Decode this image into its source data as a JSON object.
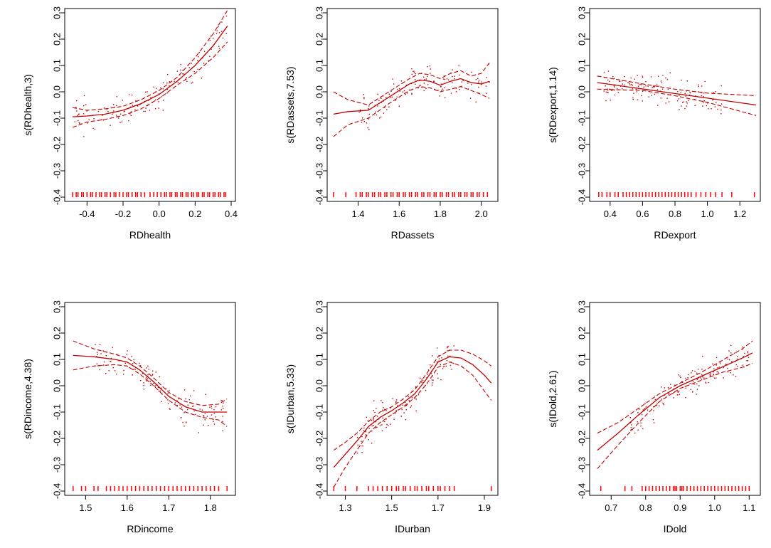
{
  "figure": {
    "colors": {
      "fit": "#c00000",
      "rug": "#ff0000",
      "axis": "#000000",
      "background": "#ffffff"
    }
  },
  "chart_data": [
    {
      "type": "line",
      "xlabel": "RDhealth",
      "ylabel": "s(RDhealth,3)",
      "xlim": [
        -0.5,
        0.4
      ],
      "ylim": [
        -0.4,
        0.3
      ],
      "xticks": [
        -0.4,
        -0.2,
        0.0,
        0.2,
        0.4
      ],
      "xtick_labels": [
        "-0.4",
        "-0.2",
        "0.0",
        "0.2",
        "0.4"
      ],
      "yticks": [
        -0.4,
        -0.3,
        -0.2,
        -0.1,
        0.0,
        0.1,
        0.2,
        0.3
      ],
      "ytick_labels": [
        "-0.4",
        "-0.3",
        "-0.2",
        "-0.1",
        "0.0",
        "0.1",
        "0.2",
        "0.3"
      ],
      "series": [
        {
          "name": "fit",
          "x": [
            -0.48,
            -0.4,
            -0.3,
            -0.2,
            -0.1,
            0.0,
            0.1,
            0.2,
            0.3,
            0.38
          ],
          "y": [
            -0.095,
            -0.092,
            -0.085,
            -0.07,
            -0.045,
            -0.01,
            0.04,
            0.1,
            0.175,
            0.25
          ]
        },
        {
          "name": "upper",
          "x": [
            -0.48,
            -0.4,
            -0.3,
            -0.2,
            -0.1,
            0.0,
            0.1,
            0.2,
            0.3,
            0.38
          ],
          "y": [
            -0.06,
            -0.07,
            -0.065,
            -0.055,
            -0.03,
            0.005,
            0.055,
            0.13,
            0.22,
            0.31
          ]
        },
        {
          "name": "lower",
          "x": [
            -0.48,
            -0.4,
            -0.3,
            -0.2,
            -0.1,
            0.0,
            0.1,
            0.2,
            0.3,
            0.38
          ],
          "y": [
            -0.135,
            -0.115,
            -0.105,
            -0.09,
            -0.065,
            -0.025,
            0.025,
            0.07,
            0.13,
            0.19
          ]
        }
      ],
      "points": {
        "xmin": -0.48,
        "xmax": 0.38,
        "n": 140,
        "spread": 0.04,
        "seed": 11
      },
      "rug": {
        "x": [
          -0.48,
          -0.46,
          -0.45,
          -0.43,
          -0.42,
          -0.4,
          -0.38,
          -0.37,
          -0.35,
          -0.33,
          -0.32,
          -0.3,
          -0.29,
          -0.27,
          -0.25,
          -0.24,
          -0.22,
          -0.2,
          -0.18,
          -0.17,
          -0.15,
          -0.13,
          -0.12,
          -0.1,
          -0.08,
          -0.05,
          -0.03,
          -0.01,
          0.01,
          0.03,
          0.04,
          0.06,
          0.07,
          0.09,
          0.1,
          0.12,
          0.13,
          0.15,
          0.16,
          0.18,
          0.19,
          0.21,
          0.22,
          0.24,
          0.25,
          0.27,
          0.28,
          0.3,
          0.31,
          0.33,
          0.34,
          0.36,
          0.37
        ]
      }
    },
    {
      "type": "line",
      "xlabel": "RDassets",
      "ylabel": "s(RDassets,7.53)",
      "xlim": [
        1.27,
        2.06
      ],
      "ylim": [
        -0.4,
        0.3
      ],
      "xticks": [
        1.4,
        1.6,
        1.8,
        2.0
      ],
      "xtick_labels": [
        "1.4",
        "1.6",
        "1.8",
        "2.0"
      ],
      "yticks": [
        -0.4,
        -0.3,
        -0.2,
        -0.1,
        0.0,
        0.1,
        0.2,
        0.3
      ],
      "ytick_labels": [
        "-0.4",
        "-0.3",
        "-0.2",
        "-0.1",
        "0.0",
        "0.1",
        "0.2",
        "0.3"
      ],
      "series": [
        {
          "name": "fit",
          "x": [
            1.28,
            1.35,
            1.45,
            1.55,
            1.65,
            1.7,
            1.75,
            1.8,
            1.85,
            1.9,
            1.95,
            2.0,
            2.04
          ],
          "y": [
            -0.085,
            -0.075,
            -0.07,
            -0.02,
            0.03,
            0.045,
            0.04,
            0.025,
            0.04,
            0.05,
            0.035,
            0.03,
            0.04
          ]
        },
        {
          "name": "upper",
          "x": [
            1.28,
            1.35,
            1.45,
            1.55,
            1.65,
            1.7,
            1.75,
            1.8,
            1.85,
            1.9,
            1.95,
            2.0,
            2.04
          ],
          "y": [
            0.0,
            -0.03,
            -0.05,
            0.0,
            0.05,
            0.07,
            0.065,
            0.05,
            0.07,
            0.08,
            0.06,
            0.07,
            0.11
          ]
        },
        {
          "name": "lower",
          "x": [
            1.28,
            1.35,
            1.45,
            1.55,
            1.65,
            1.7,
            1.75,
            1.8,
            1.85,
            1.9,
            1.95,
            2.0,
            2.04
          ],
          "y": [
            -0.17,
            -0.125,
            -0.1,
            -0.045,
            0.005,
            0.02,
            0.015,
            0.0,
            0.01,
            0.02,
            0.005,
            -0.01,
            -0.025
          ]
        },
        {
          "name": "fit-extra",
          "x": [],
          "y": []
        }
      ],
      "points": {
        "xmin": 1.4,
        "xmax": 2.04,
        "n": 140,
        "spread": 0.045,
        "seed": 23
      },
      "rug": {
        "x": [
          1.28,
          1.34,
          1.39,
          1.41,
          1.42,
          1.44,
          1.45,
          1.47,
          1.48,
          1.5,
          1.51,
          1.53,
          1.54,
          1.56,
          1.57,
          1.59,
          1.6,
          1.62,
          1.63,
          1.65,
          1.66,
          1.68,
          1.69,
          1.71,
          1.72,
          1.74,
          1.75,
          1.77,
          1.78,
          1.8,
          1.81,
          1.83,
          1.84,
          1.86,
          1.87,
          1.89,
          1.9,
          1.92,
          1.93,
          1.95,
          1.96,
          1.98,
          1.99,
          2.01,
          2.03
        ]
      }
    },
    {
      "type": "line",
      "xlabel": "RDexport",
      "ylabel": "s(RDexport,1.14)",
      "xlim": [
        0.3,
        1.3
      ],
      "ylim": [
        -0.4,
        0.3
      ],
      "xticks": [
        0.4,
        0.6,
        0.8,
        1.0,
        1.2
      ],
      "xtick_labels": [
        "0.4",
        "0.6",
        "0.8",
        "1.0",
        "1.2"
      ],
      "yticks": [
        -0.4,
        -0.3,
        -0.2,
        -0.1,
        0.0,
        0.1,
        0.2,
        0.3
      ],
      "ytick_labels": [
        "-0.4",
        "-0.3",
        "-0.2",
        "-0.1",
        "0.0",
        "0.1",
        "0.2",
        "0.3"
      ],
      "series": [
        {
          "name": "fit",
          "x": [
            0.32,
            1.3
          ],
          "y": [
            0.035,
            -0.05
          ]
        },
        {
          "name": "upper",
          "x": [
            0.32,
            0.6,
            0.8,
            1.0,
            1.3
          ],
          "y": [
            0.06,
            0.03,
            0.01,
            -0.005,
            -0.015
          ]
        },
        {
          "name": "lower",
          "x": [
            0.32,
            0.6,
            0.8,
            1.0,
            1.3
          ],
          "y": [
            0.01,
            0.005,
            -0.015,
            -0.04,
            -0.09
          ]
        }
      ],
      "points": {
        "xmin": 0.35,
        "xmax": 1.1,
        "n": 150,
        "spread": 0.04,
        "seed": 37
      },
      "rug": {
        "x": [
          0.33,
          0.35,
          0.38,
          0.4,
          0.43,
          0.45,
          0.48,
          0.5,
          0.52,
          0.54,
          0.56,
          0.58,
          0.6,
          0.62,
          0.64,
          0.66,
          0.68,
          0.7,
          0.72,
          0.74,
          0.76,
          0.78,
          0.8,
          0.82,
          0.84,
          0.86,
          0.88,
          0.9,
          0.93,
          0.96,
          0.99,
          1.02,
          1.05,
          1.09,
          1.15,
          1.29
        ]
      }
    },
    {
      "type": "line",
      "xlabel": "RDincome",
      "ylabel": "s(RDincome,4.38)",
      "xlim": [
        1.46,
        1.85
      ],
      "ylim": [
        -0.4,
        0.3
      ],
      "xticks": [
        1.5,
        1.6,
        1.7,
        1.8
      ],
      "xtick_labels": [
        "1.5",
        "1.6",
        "1.7",
        "1.8"
      ],
      "yticks": [
        -0.4,
        -0.3,
        -0.2,
        -0.1,
        0.0,
        0.1,
        0.2,
        0.3
      ],
      "ytick_labels": [
        "-0.4",
        "-0.3",
        "-0.2",
        "-0.1",
        "0.0",
        "0.1",
        "0.2",
        "0.3"
      ],
      "series": [
        {
          "name": "fit",
          "x": [
            1.47,
            1.52,
            1.57,
            1.6,
            1.63,
            1.66,
            1.7,
            1.74,
            1.78,
            1.82,
            1.84
          ],
          "y": [
            0.115,
            0.11,
            0.1,
            0.09,
            0.06,
            0.02,
            -0.04,
            -0.08,
            -0.1,
            -0.1,
            -0.1
          ]
        },
        {
          "name": "upper",
          "x": [
            1.47,
            1.52,
            1.57,
            1.6,
            1.63,
            1.66,
            1.7,
            1.74,
            1.78,
            1.82,
            1.84
          ],
          "y": [
            0.17,
            0.14,
            0.12,
            0.105,
            0.075,
            0.035,
            -0.025,
            -0.06,
            -0.075,
            -0.07,
            -0.05
          ]
        },
        {
          "name": "lower",
          "x": [
            1.47,
            1.52,
            1.57,
            1.6,
            1.63,
            1.66,
            1.7,
            1.74,
            1.78,
            1.82,
            1.84
          ],
          "y": [
            0.06,
            0.075,
            0.08,
            0.075,
            0.045,
            0.005,
            -0.055,
            -0.1,
            -0.12,
            -0.13,
            -0.155
          ]
        }
      ],
      "points": {
        "xmin": 1.52,
        "xmax": 1.83,
        "n": 140,
        "spread": 0.045,
        "seed": 51
      },
      "rug": {
        "x": [
          1.47,
          1.49,
          1.5,
          1.52,
          1.53,
          1.55,
          1.56,
          1.57,
          1.58,
          1.59,
          1.6,
          1.61,
          1.62,
          1.63,
          1.64,
          1.65,
          1.66,
          1.67,
          1.68,
          1.69,
          1.7,
          1.71,
          1.72,
          1.73,
          1.74,
          1.75,
          1.76,
          1.77,
          1.78,
          1.79,
          1.8,
          1.81,
          1.82,
          1.84
        ]
      }
    },
    {
      "type": "line",
      "xlabel": "IDurban",
      "ylabel": "s(IDurban,5.33)",
      "xlim": [
        1.24,
        1.94
      ],
      "ylim": [
        -0.4,
        0.3
      ],
      "xticks": [
        1.3,
        1.5,
        1.7,
        1.9
      ],
      "xtick_labels": [
        "1.3",
        "1.5",
        "1.7",
        "1.9"
      ],
      "yticks": [
        -0.4,
        -0.3,
        -0.2,
        -0.1,
        0.0,
        0.1,
        0.2,
        0.3
      ],
      "ytick_labels": [
        "-0.4",
        "-0.3",
        "-0.2",
        "-0.1",
        "0.0",
        "0.1",
        "0.2",
        "0.3"
      ],
      "series": [
        {
          "name": "fit",
          "x": [
            1.25,
            1.3,
            1.35,
            1.4,
            1.45,
            1.5,
            1.55,
            1.6,
            1.65,
            1.7,
            1.75,
            1.8,
            1.85,
            1.9,
            1.93
          ],
          "y": [
            -0.31,
            -0.26,
            -0.21,
            -0.155,
            -0.12,
            -0.095,
            -0.065,
            -0.03,
            0.025,
            0.09,
            0.11,
            0.105,
            0.08,
            0.04,
            0.01
          ]
        },
        {
          "name": "upper",
          "x": [
            1.25,
            1.3,
            1.35,
            1.4,
            1.45,
            1.5,
            1.55,
            1.6,
            1.65,
            1.7,
            1.75,
            1.8,
            1.85,
            1.9,
            1.93
          ],
          "y": [
            -0.245,
            -0.215,
            -0.18,
            -0.135,
            -0.1,
            -0.08,
            -0.05,
            -0.015,
            0.045,
            0.11,
            0.135,
            0.135,
            0.12,
            0.095,
            0.075
          ]
        },
        {
          "name": "lower",
          "x": [
            1.25,
            1.3,
            1.35,
            1.4,
            1.45,
            1.5,
            1.55,
            1.6,
            1.65,
            1.7,
            1.75,
            1.8,
            1.85,
            1.9,
            1.93
          ],
          "y": [
            -0.385,
            -0.31,
            -0.245,
            -0.18,
            -0.14,
            -0.11,
            -0.08,
            -0.045,
            0.005,
            0.07,
            0.09,
            0.075,
            0.04,
            -0.02,
            -0.055
          ]
        }
      ],
      "points": {
        "xmin": 1.35,
        "xmax": 1.77,
        "n": 140,
        "spread": 0.045,
        "seed": 67
      },
      "rug": {
        "x": [
          1.25,
          1.3,
          1.35,
          1.4,
          1.42,
          1.44,
          1.46,
          1.48,
          1.5,
          1.52,
          1.53,
          1.55,
          1.56,
          1.58,
          1.6,
          1.61,
          1.63,
          1.65,
          1.66,
          1.68,
          1.7,
          1.71,
          1.73,
          1.75,
          1.77,
          1.93
        ]
      }
    },
    {
      "type": "line",
      "xlabel": "IDold",
      "ylabel": "s(IDold,2.61)",
      "xlim": [
        0.65,
        1.12
      ],
      "ylim": [
        -0.4,
        0.3
      ],
      "xticks": [
        0.7,
        0.8,
        0.9,
        1.0,
        1.1
      ],
      "xtick_labels": [
        "0.7",
        "0.8",
        "0.9",
        "1.0",
        "1.1"
      ],
      "yticks": [
        -0.4,
        -0.3,
        -0.2,
        -0.1,
        0.0,
        0.1,
        0.2,
        0.3
      ],
      "ytick_labels": [
        "-0.4",
        "-0.3",
        "-0.2",
        "-0.1",
        "0.0",
        "0.1",
        "0.2",
        "0.3"
      ],
      "series": [
        {
          "name": "fit",
          "x": [
            0.66,
            0.72,
            0.78,
            0.84,
            0.9,
            0.96,
            1.02,
            1.08,
            1.11
          ],
          "y": [
            -0.245,
            -0.18,
            -0.11,
            -0.045,
            0.0,
            0.035,
            0.07,
            0.105,
            0.125
          ]
        },
        {
          "name": "upper",
          "x": [
            0.66,
            0.72,
            0.78,
            0.84,
            0.9,
            0.96,
            1.02,
            1.08,
            1.11
          ],
          "y": [
            -0.18,
            -0.14,
            -0.085,
            -0.03,
            0.01,
            0.05,
            0.095,
            0.14,
            0.17
          ]
        },
        {
          "name": "lower",
          "x": [
            0.66,
            0.72,
            0.78,
            0.84,
            0.9,
            0.96,
            1.02,
            1.08,
            1.11
          ],
          "y": [
            -0.315,
            -0.225,
            -0.14,
            -0.06,
            -0.01,
            0.02,
            0.05,
            0.07,
            0.085
          ]
        }
      ],
      "points": {
        "xmin": 0.75,
        "xmax": 1.1,
        "n": 150,
        "spread": 0.04,
        "seed": 83
      },
      "rug": {
        "x": [
          0.67,
          0.74,
          0.76,
          0.79,
          0.8,
          0.81,
          0.82,
          0.83,
          0.84,
          0.85,
          0.86,
          0.87,
          0.88,
          0.885,
          0.89,
          0.9,
          0.905,
          0.91,
          0.92,
          0.93,
          0.94,
          0.95,
          0.96,
          0.97,
          0.98,
          0.99,
          1.0,
          1.01,
          1.02,
          1.03,
          1.04,
          1.05,
          1.06,
          1.07,
          1.08,
          1.09,
          1.1
        ]
      }
    }
  ]
}
